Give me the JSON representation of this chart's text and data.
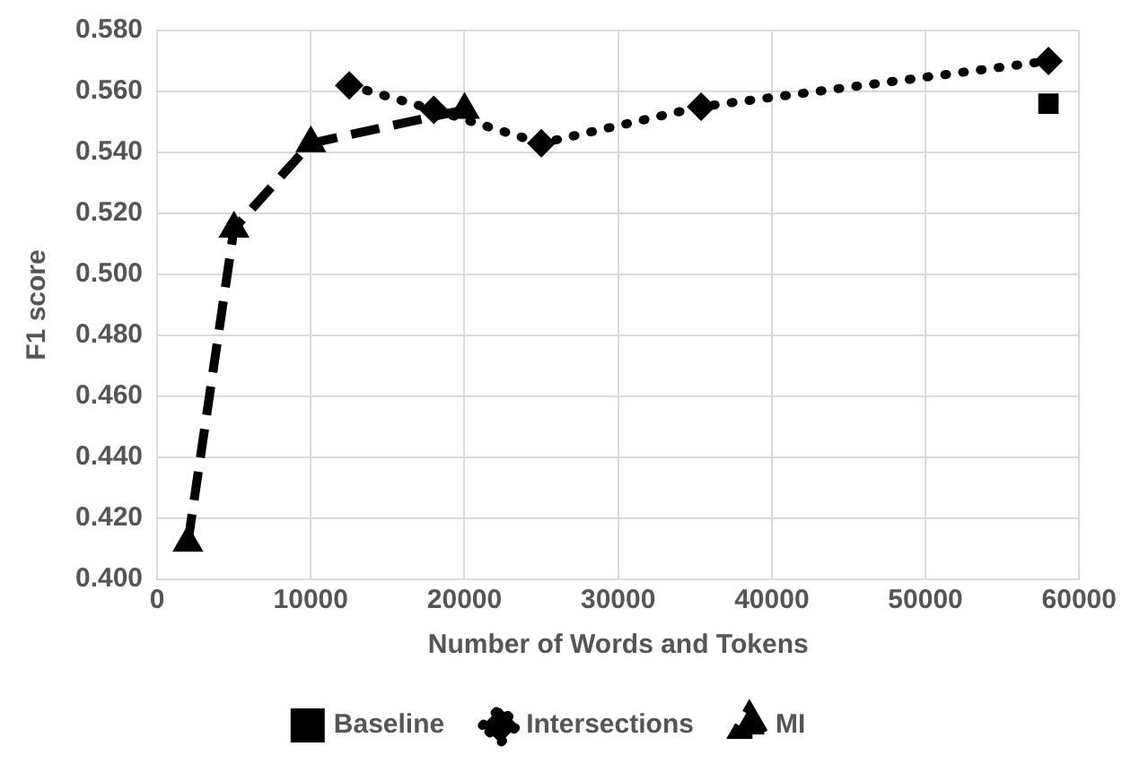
{
  "chart_data": {
    "type": "line",
    "xlabel": "Number of Words and Tokens",
    "ylabel": "F1 score",
    "xlim": [
      0,
      60000
    ],
    "xticks": [
      0,
      10000,
      20000,
      30000,
      40000,
      50000,
      60000
    ],
    "ylim": [
      0.4,
      0.58
    ],
    "yticks": [
      {
        "value": 0.4,
        "label": "0.400"
      },
      {
        "value": 0.42,
        "label": "0.420"
      },
      {
        "value": 0.44,
        "label": "0.440"
      },
      {
        "value": 0.46,
        "label": "0.460"
      },
      {
        "value": 0.48,
        "label": "0.480"
      },
      {
        "value": 0.5,
        "label": "0.500"
      },
      {
        "value": 0.52,
        "label": "0.520"
      },
      {
        "value": 0.54,
        "label": "0.540"
      },
      {
        "value": 0.56,
        "label": "0.560"
      },
      {
        "value": 0.58,
        "label": "0.580"
      }
    ],
    "grid": true,
    "legend": "bottom",
    "series": [
      {
        "name": "Baseline",
        "color": "#000000",
        "marker": "square",
        "line_style": "solid",
        "x": [
          58000
        ],
        "values": [
          0.556
        ]
      },
      {
        "name": "Intersections",
        "color": "#000000",
        "marker": "diamond",
        "line_style": "dotted",
        "x": [
          12500,
          18000,
          25000,
          35400,
          58000
        ],
        "values": [
          0.562,
          0.554,
          0.543,
          0.555,
          0.57
        ]
      },
      {
        "name": "MI",
        "color": "#000000",
        "marker": "triangle",
        "line_style": "dashed",
        "x": [
          2000,
          5000,
          10000,
          20000
        ],
        "values": [
          0.412,
          0.515,
          0.543,
          0.554
        ]
      }
    ]
  }
}
